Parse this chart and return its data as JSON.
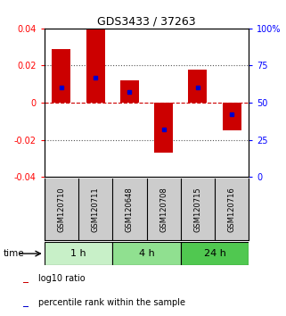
{
  "title": "GDS3433 / 37263",
  "samples": [
    "GSM120710",
    "GSM120711",
    "GSM120648",
    "GSM120708",
    "GSM120715",
    "GSM120716"
  ],
  "log10_ratios": [
    0.029,
    0.04,
    0.012,
    -0.027,
    0.018,
    -0.015
  ],
  "percentile_ranks": [
    60,
    67,
    57,
    32,
    60,
    42
  ],
  "groups": [
    {
      "label": "1 h",
      "indices": [
        0,
        1
      ],
      "color": "#c8f0c8"
    },
    {
      "label": "4 h",
      "indices": [
        2,
        3
      ],
      "color": "#90e090"
    },
    {
      "label": "24 h",
      "indices": [
        4,
        5
      ],
      "color": "#50c850"
    }
  ],
  "bar_color": "#cc0000",
  "percentile_color": "#0000cc",
  "bar_width": 0.55,
  "ylim_left": [
    -0.04,
    0.04
  ],
  "ylim_right": [
    0,
    100
  ],
  "yticks_left": [
    -0.04,
    -0.02,
    0,
    0.02,
    0.04
  ],
  "yticks_right": [
    0,
    25,
    50,
    75,
    100
  ],
  "ytick_labels_right": [
    "0",
    "25",
    "50",
    "75",
    "100%"
  ],
  "grid_values": [
    -0.02,
    0.0,
    0.02
  ],
  "background_color": "#ffffff",
  "plot_bg": "#ffffff",
  "label_bg": "#cccccc",
  "legend_items": [
    "log10 ratio",
    "percentile rank within the sample"
  ]
}
